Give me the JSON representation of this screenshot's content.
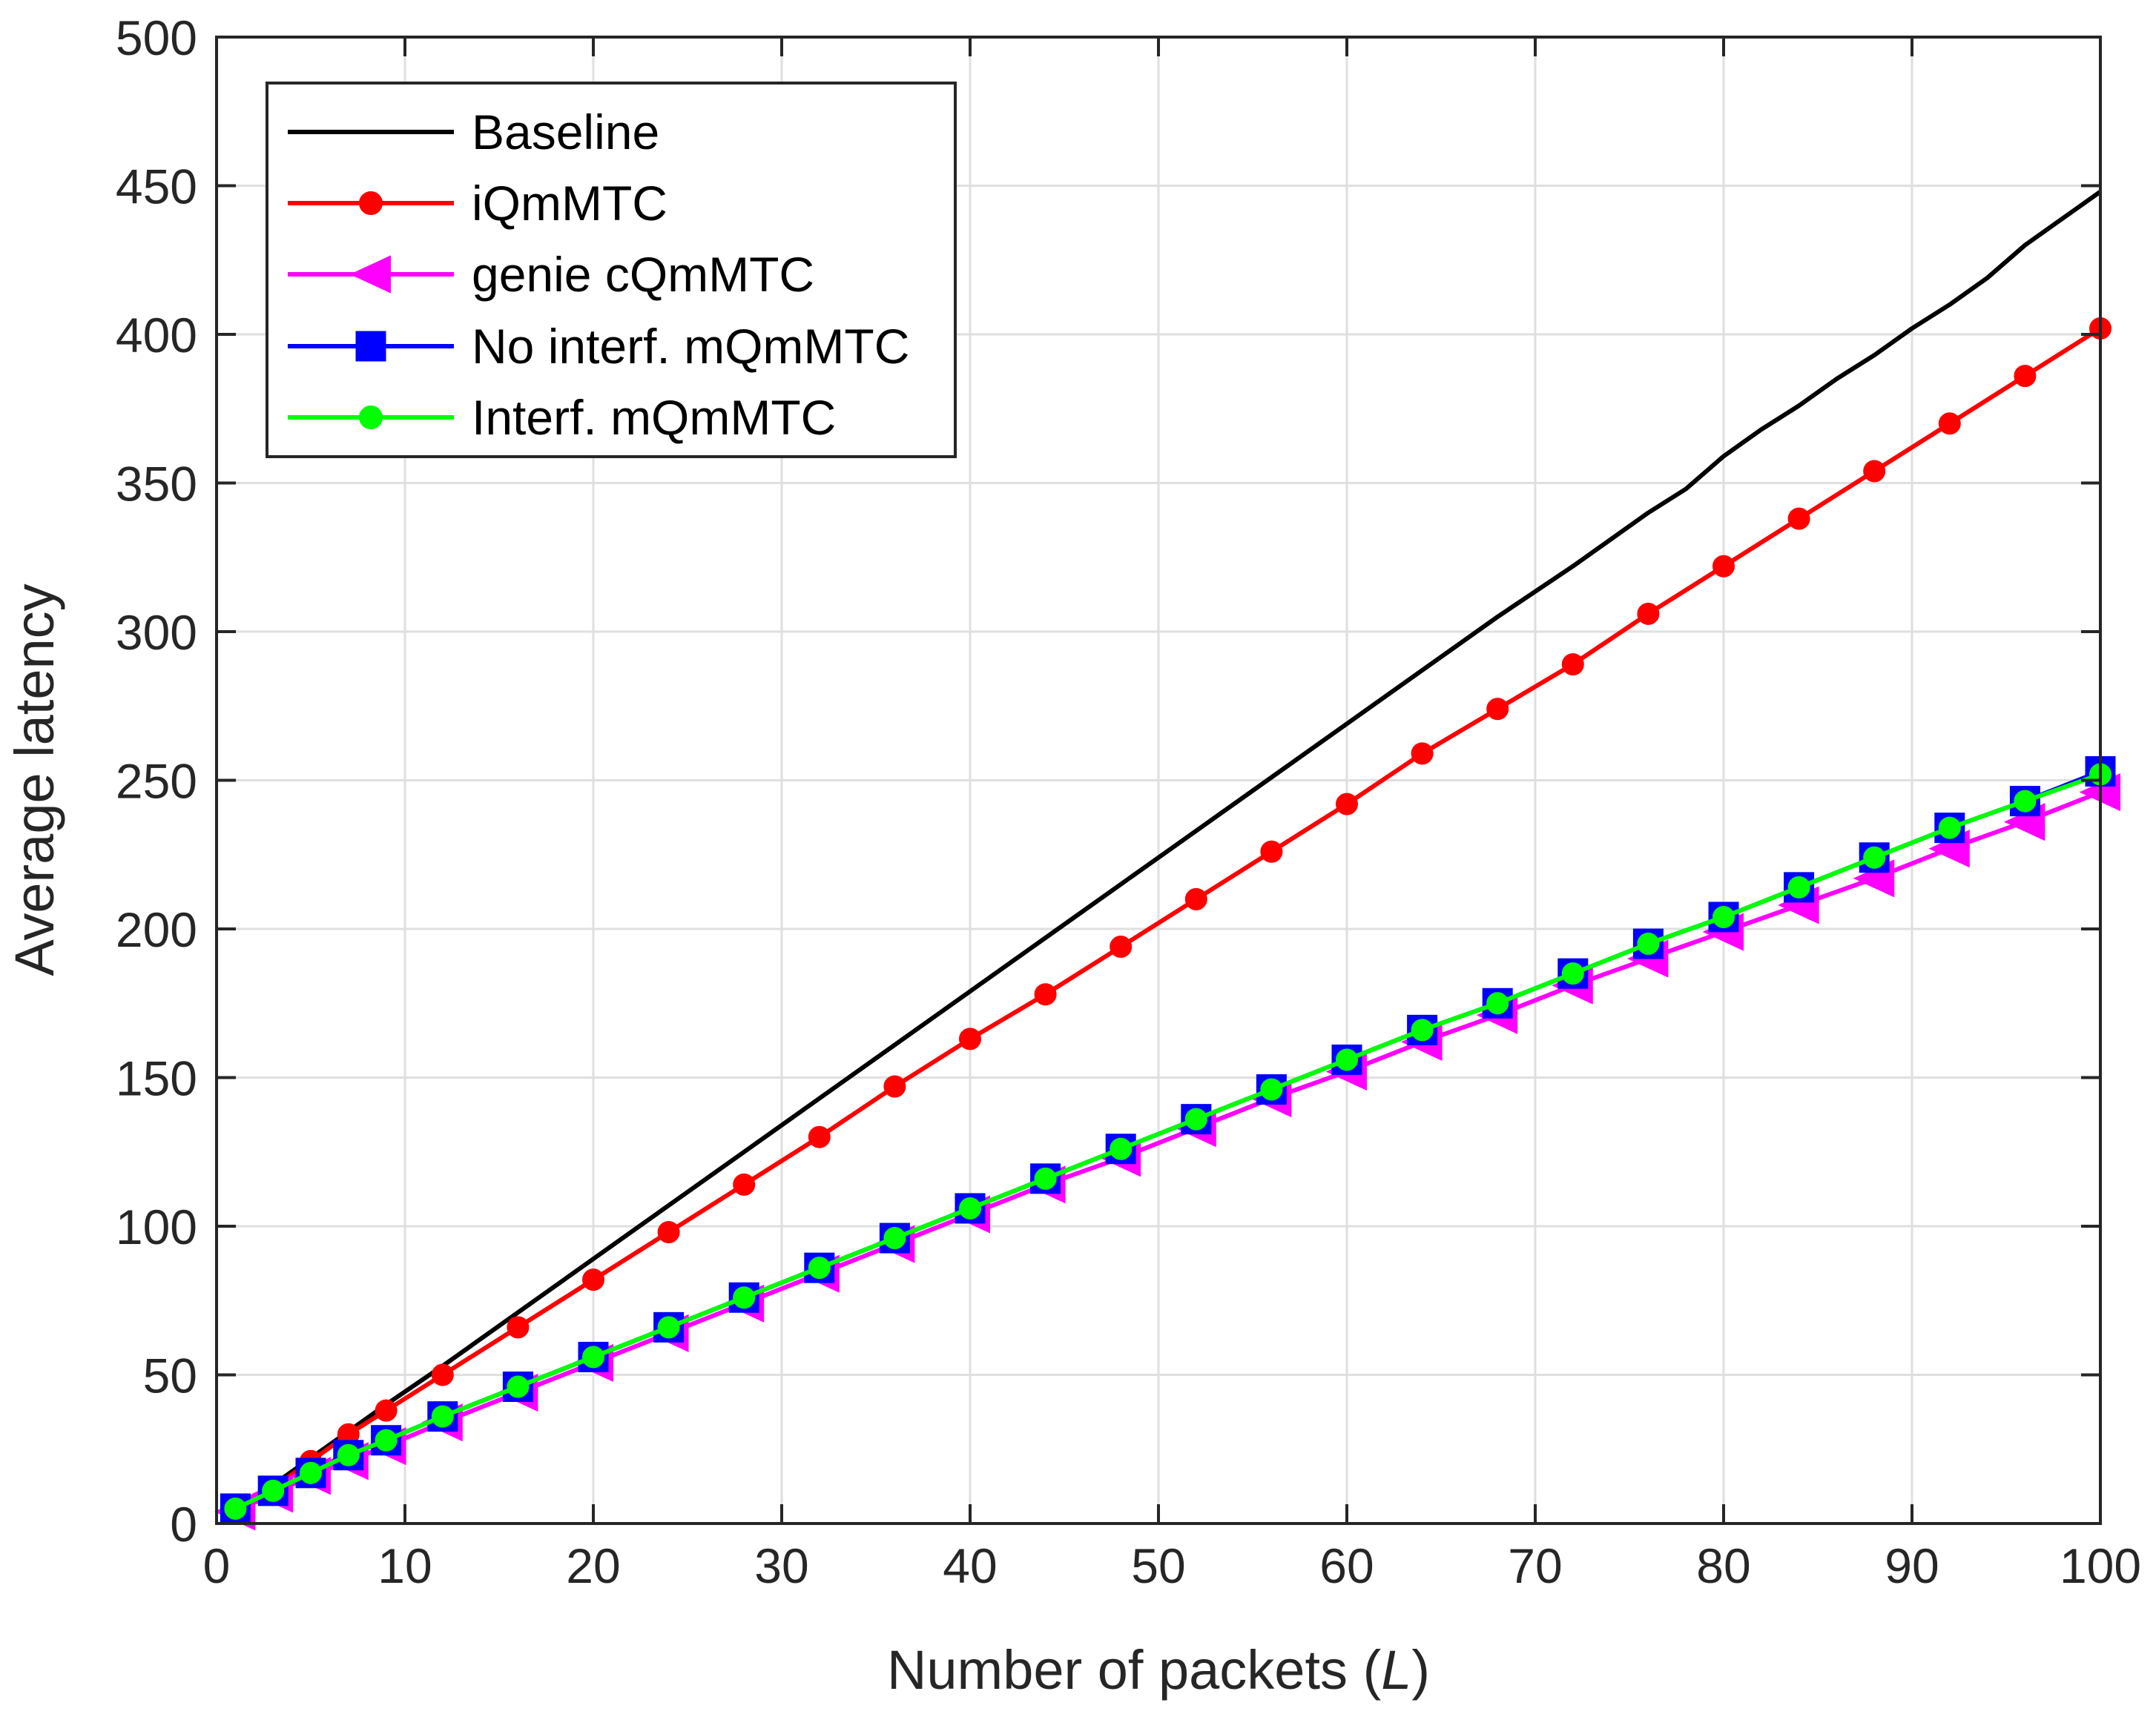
{
  "chart_data": {
    "type": "line",
    "title": "",
    "xlabel": "Number of packets",
    "xlabel_symbol": "L",
    "ylabel": "Average latency",
    "xlim": [
      0,
      100
    ],
    "ylim": [
      0,
      500
    ],
    "xticks": [
      0,
      10,
      20,
      30,
      40,
      50,
      60,
      70,
      80,
      90,
      100
    ],
    "yticks": [
      0,
      50,
      100,
      150,
      200,
      250,
      300,
      350,
      400,
      450,
      500
    ],
    "grid": true,
    "legend_position": "top-left",
    "series": [
      {
        "name": "Baseline",
        "color": "#000000",
        "marker": "none",
        "x": [
          1,
          3,
          5,
          7,
          9,
          12,
          16,
          20,
          24,
          28,
          32,
          36,
          40,
          44,
          48,
          52,
          56,
          60,
          64,
          68,
          72,
          76,
          78,
          80,
          82,
          84,
          86,
          88,
          90,
          92,
          94,
          96,
          98,
          100
        ],
        "y": [
          4.5,
          13,
          22,
          31,
          40,
          53,
          71,
          89,
          107,
          125,
          143,
          161,
          179,
          197,
          215,
          233,
          251,
          269,
          287,
          305,
          322,
          340,
          348,
          359,
          368,
          376,
          385,
          393,
          402,
          410,
          419,
          430,
          439,
          448
        ]
      },
      {
        "name": "iQmMTC",
        "color": "#ff0000",
        "marker": "dot",
        "x": [
          1,
          3,
          5,
          7,
          9,
          12,
          16,
          20,
          24,
          28,
          32,
          36,
          40,
          44,
          48,
          52,
          56,
          60,
          64,
          68,
          72,
          76,
          80,
          84,
          88,
          92,
          96,
          100
        ],
        "y": [
          5,
          12,
          21,
          30,
          38,
          50,
          66,
          82,
          98,
          114,
          130,
          147,
          163,
          178,
          194,
          210,
          226,
          242,
          259,
          274,
          289,
          306,
          322,
          338,
          354,
          370,
          386,
          402
        ]
      },
      {
        "name": "genie cQmMTC",
        "color": "#ff00ff",
        "marker": "triangle-left",
        "x": [
          1,
          3,
          5,
          7,
          9,
          12,
          16,
          20,
          24,
          28,
          32,
          36,
          40,
          44,
          48,
          52,
          56,
          60,
          64,
          68,
          72,
          76,
          80,
          84,
          88,
          92,
          96,
          100
        ],
        "y": [
          4,
          10,
          16,
          21,
          26,
          34,
          44,
          54,
          64,
          74,
          84,
          94,
          104,
          114,
          123,
          133,
          143,
          152,
          162,
          171,
          181,
          190,
          199,
          208,
          217,
          227,
          236,
          246
        ]
      },
      {
        "name": "No interf. mQmMTC",
        "color": "#0000ff",
        "marker": "square",
        "x": [
          1,
          3,
          5,
          7,
          9,
          12,
          16,
          20,
          24,
          28,
          32,
          36,
          40,
          44,
          48,
          52,
          56,
          60,
          64,
          68,
          72,
          76,
          80,
          84,
          88,
          92,
          96,
          100
        ],
        "y": [
          5,
          11,
          17,
          23,
          28,
          36,
          46,
          56,
          66,
          76,
          86,
          96,
          106,
          116,
          126,
          136,
          146,
          156,
          166,
          175,
          185,
          195,
          204,
          214,
          224,
          234,
          243,
          253
        ]
      },
      {
        "name": "Interf. mQmMTC",
        "color": "#00ff00",
        "marker": "dot",
        "x": [
          1,
          3,
          5,
          7,
          9,
          12,
          16,
          20,
          24,
          28,
          32,
          36,
          40,
          44,
          48,
          52,
          56,
          60,
          64,
          68,
          72,
          76,
          80,
          84,
          88,
          92,
          96,
          100
        ],
        "y": [
          5,
          11,
          17,
          23,
          28,
          36,
          46,
          56,
          66,
          76,
          86,
          96,
          106,
          116,
          126,
          136,
          146,
          156,
          166,
          175,
          185,
          195,
          204,
          214,
          224,
          234,
          243,
          252
        ]
      }
    ]
  }
}
